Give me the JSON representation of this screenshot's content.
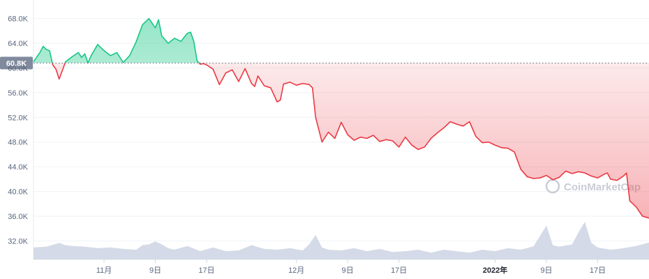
{
  "chart_data": {
    "type": "area",
    "y_ticks": [
      "68.0K",
      "64.0K",
      "60.0K",
      "56.0K",
      "52.0K",
      "48.0K",
      "44.0K",
      "40.0K",
      "36.0K",
      "32.0K"
    ],
    "y_tick_values": [
      68000,
      64000,
      60000,
      56000,
      52000,
      48000,
      44000,
      40000,
      36000,
      32000
    ],
    "ylim": [
      29000,
      71000
    ],
    "x_ticks": [
      "11月",
      "9日",
      "17日",
      "12月",
      "9日",
      "17日",
      "2022年",
      "9日",
      "17日"
    ],
    "x_tick_days": [
      11,
      19,
      27,
      41,
      49,
      57,
      72,
      80,
      88
    ],
    "x_tick_bold": [
      false,
      false,
      false,
      false,
      false,
      false,
      true,
      false,
      false
    ],
    "xlim": [
      0,
      96
    ],
    "reference": {
      "value": 60800,
      "label": "60.8K"
    },
    "colors": {
      "up": "#16c784",
      "down": "#ea3943",
      "volume": "#cfd6e4",
      "grid": "#eff2f5",
      "ref_label_bg": "#808a9d"
    },
    "watermark": "CoinMarketCap",
    "series": [
      {
        "x": [
          0,
          1,
          1.5,
          2,
          2.5,
          3,
          3.5,
          4,
          5,
          6,
          7,
          7.5,
          8,
          8.5,
          9,
          10,
          11,
          12,
          13,
          14,
          15,
          16,
          17,
          18,
          19,
          19.5,
          20,
          21,
          22,
          23,
          24,
          24.5,
          25,
          25.5,
          26,
          26.5,
          27,
          28,
          29,
          30,
          31,
          32,
          33,
          34,
          34.5,
          35,
          36,
          37,
          38,
          38.5,
          39,
          40,
          41,
          42,
          43,
          43.5,
          44,
          45,
          46,
          47,
          48,
          49,
          50,
          51,
          52,
          53,
          54,
          55,
          56,
          57,
          58,
          59,
          60,
          61,
          62,
          63,
          64,
          65,
          66,
          67,
          68,
          69,
          70,
          71,
          72,
          73,
          74,
          75,
          76,
          77,
          78,
          79,
          80,
          81,
          82,
          83,
          84,
          85,
          86,
          87,
          88,
          89,
          89.5,
          90,
          91,
          92,
          92.5,
          93,
          94,
          95,
          96
        ],
        "price": [
          61000,
          62500,
          63500,
          63000,
          62800,
          60500,
          59800,
          58200,
          61000,
          61800,
          62500,
          61700,
          62300,
          60800,
          62000,
          63800,
          62800,
          62000,
          62500,
          60900,
          62000,
          64200,
          67000,
          68000,
          66500,
          67800,
          65200,
          64000,
          64800,
          64300,
          65600,
          65800,
          64300,
          61200,
          60600,
          60700,
          60500,
          59800,
          57300,
          59200,
          59700,
          57800,
          59900,
          57500,
          57000,
          58700,
          57100,
          56800,
          54500,
          54800,
          57400,
          57700,
          57200,
          57500,
          57300,
          56800,
          52000,
          48000,
          49600,
          48600,
          51200,
          49200,
          48300,
          48800,
          48600,
          49100,
          48100,
          48400,
          48200,
          47200,
          48800,
          47500,
          46800,
          47200,
          48600,
          49500,
          50300,
          51300,
          50900,
          50600,
          51300,
          48900,
          47900,
          48000,
          47500,
          47100,
          47000,
          46400,
          43600,
          42400,
          42100,
          42200,
          42600,
          41900,
          42300,
          43300,
          42900,
          43200,
          43000,
          42500,
          42200,
          42800,
          43000,
          42000,
          41800,
          42500,
          43000,
          38500,
          37500,
          36000,
          35700
        ]
      }
    ],
    "volume": {
      "x": [
        0,
        2,
        4,
        5,
        6,
        8,
        10,
        12,
        14,
        16,
        17,
        18,
        19,
        20,
        21,
        22,
        24,
        26,
        28,
        30,
        32,
        34,
        36,
        38,
        40,
        42,
        43,
        44,
        45,
        46,
        48,
        50,
        52,
        54,
        56,
        58,
        60,
        62,
        64,
        66,
        68,
        70,
        72,
        74,
        76,
        78,
        80,
        81,
        82,
        84,
        85,
        86,
        87,
        88,
        90,
        92,
        94,
        96
      ],
      "values": [
        0.32,
        0.34,
        0.44,
        0.38,
        0.36,
        0.34,
        0.3,
        0.32,
        0.28,
        0.26,
        0.38,
        0.4,
        0.48,
        0.4,
        0.3,
        0.26,
        0.36,
        0.22,
        0.32,
        0.22,
        0.24,
        0.38,
        0.28,
        0.26,
        0.3,
        0.24,
        0.4,
        0.65,
        0.32,
        0.26,
        0.24,
        0.3,
        0.22,
        0.28,
        0.2,
        0.22,
        0.26,
        0.18,
        0.26,
        0.22,
        0.18,
        0.26,
        0.22,
        0.3,
        0.26,
        0.35,
        0.9,
        0.38,
        0.34,
        0.4,
        0.72,
        1.0,
        0.44,
        0.32,
        0.26,
        0.3,
        0.36,
        0.45
      ]
    }
  }
}
